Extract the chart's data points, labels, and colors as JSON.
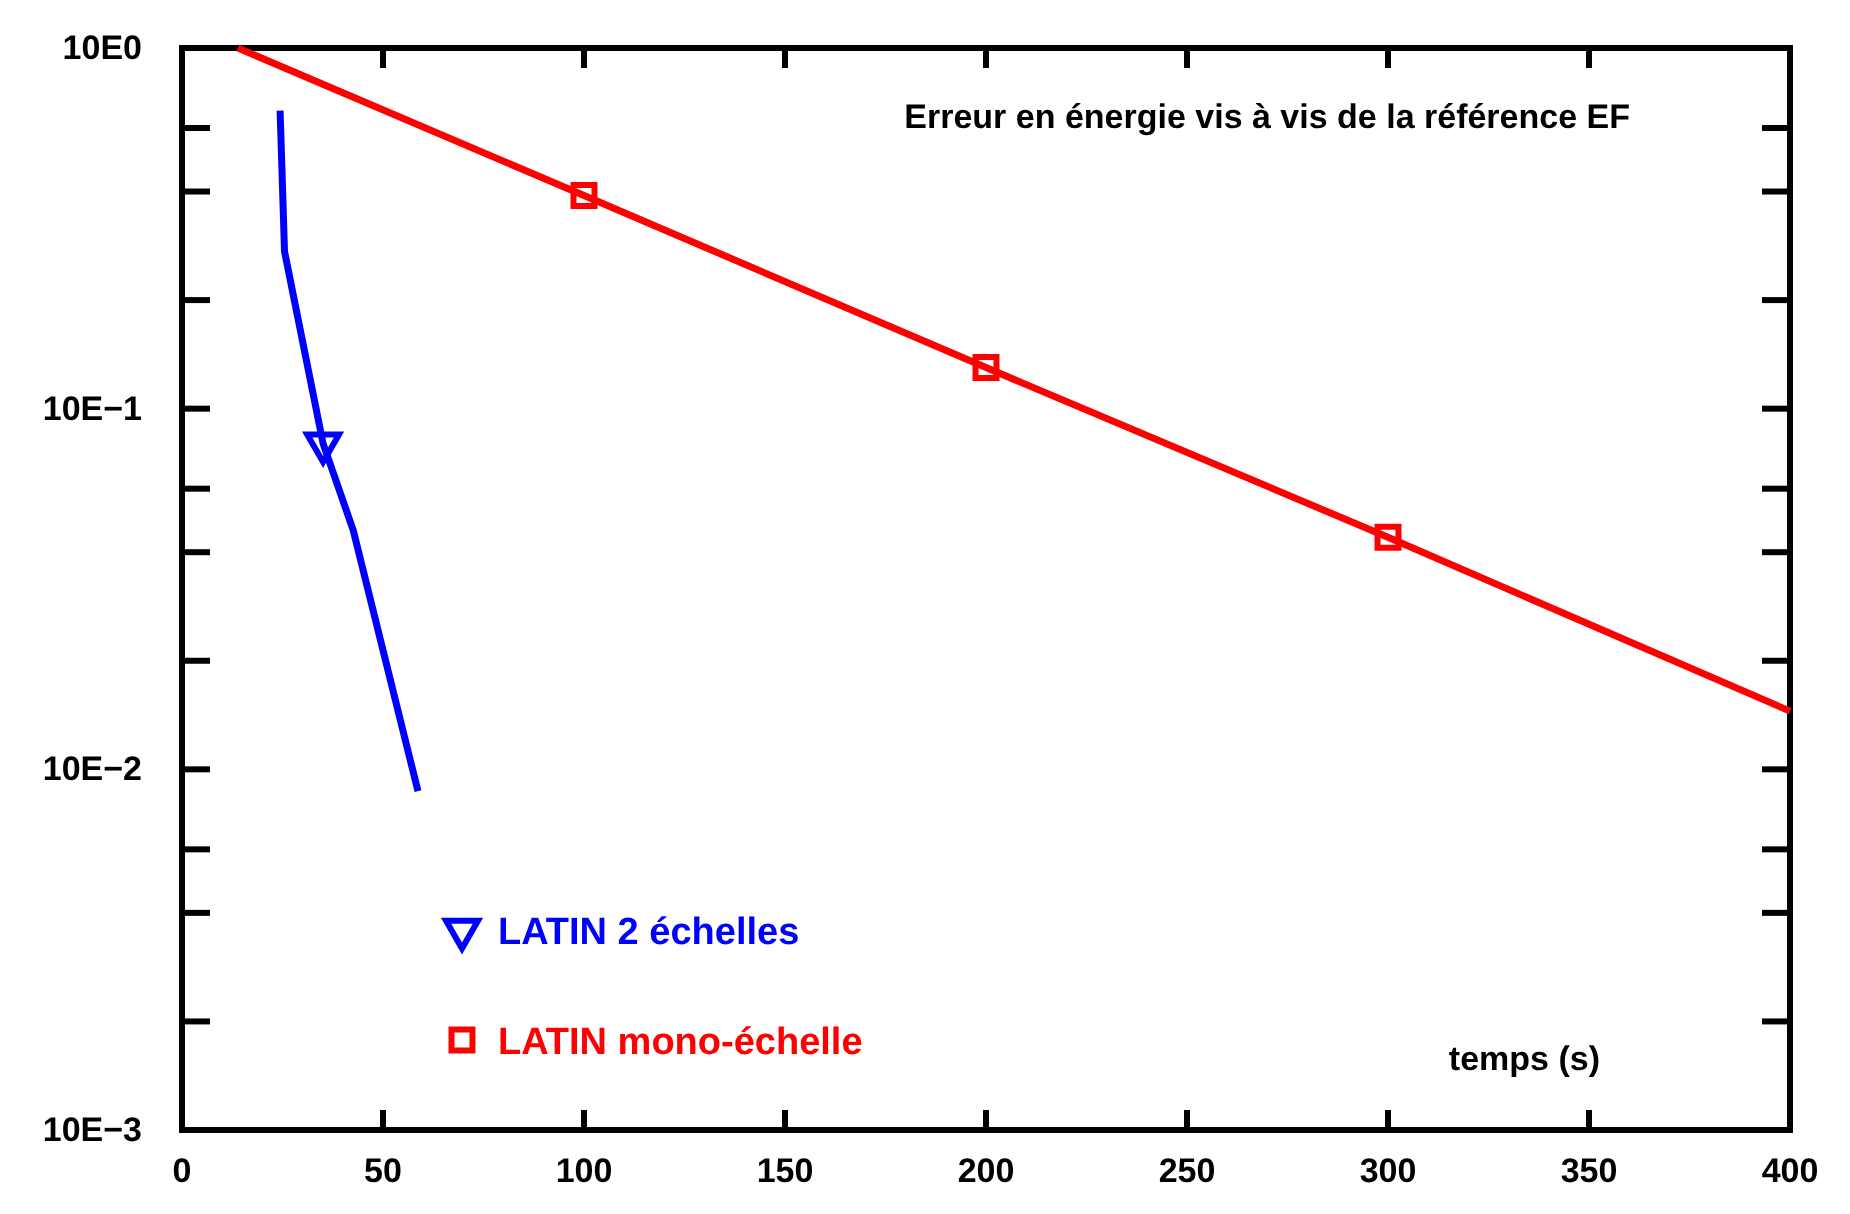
{
  "chart_data": {
    "type": "line",
    "title": "Erreur en énergie vis à vis de la référence EF",
    "xlabel": "temps (s)",
    "log": "y",
    "xlim": [
      0,
      400
    ],
    "xticks": [
      0,
      50,
      100,
      150,
      200,
      250,
      300,
      350,
      400
    ],
    "ylim": [
      0.01,
      10
    ],
    "yticks": [
      {
        "value": 0.01,
        "label": "10E−3"
      },
      {
        "value": 0.02,
        "label": null
      },
      {
        "value": 0.04,
        "label": null
      },
      {
        "value": 0.06,
        "label": null
      },
      {
        "value": 0.1,
        "label": "10E−2"
      },
      {
        "value": 0.2,
        "label": null
      },
      {
        "value": 0.4,
        "label": null
      },
      {
        "value": 0.6,
        "label": null
      },
      {
        "value": 1,
        "label": "10E−1"
      },
      {
        "value": 2,
        "label": null
      },
      {
        "value": 4,
        "label": null
      },
      {
        "value": 6,
        "label": null
      },
      {
        "value": 10,
        "label": "10E0"
      }
    ],
    "grid": false,
    "legend": "bottom left",
    "series": [
      {
        "type": "line",
        "color": "#0000ff",
        "marker": "none",
        "x": [
          24.4,
          25.5,
          35.1,
          42.6,
          58.7
        ],
        "values": [
          6.7,
          2.73,
          0.8,
          0.46,
          0.087
        ]
      },
      {
        "type": "scatter",
        "name": "LATIN 2 échelles",
        "color": "#0000ff",
        "marker": "triangle",
        "x": [
          35.1
        ],
        "values": [
          0.8
        ]
      },
      {
        "type": "line",
        "color": "#ff0000",
        "marker": "none",
        "x": [
          13.9,
          100,
          200,
          300,
          400
        ],
        "values": [
          10,
          3.9,
          1.3,
          0.44,
          0.145
        ]
      },
      {
        "type": "scatter",
        "name": "LATIN mono-échelle",
        "color": "#ff0000",
        "marker": "square",
        "x": [
          100,
          200,
          300
        ],
        "values": [
          3.9,
          1.3,
          0.44
        ]
      }
    ]
  }
}
